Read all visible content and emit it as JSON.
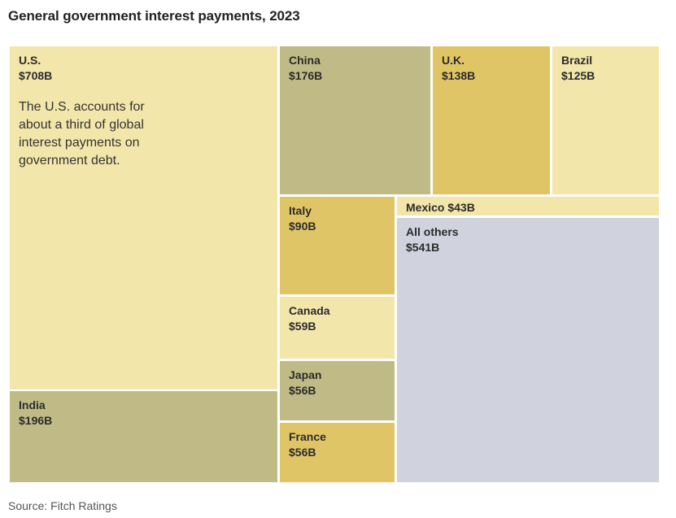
{
  "title": "General government interest payments, 2023",
  "source": "Source: Fitch Ratings",
  "colors": {
    "light_yellow": "#f3e6aa",
    "olive": "#c0bb86",
    "gold": "#e0c566",
    "gray_blue": "#d0d2de"
  },
  "chart_data": {
    "type": "treemap",
    "title": "General government interest payments, 2023",
    "unit": "$B",
    "items": [
      {
        "name": "U.S.",
        "value": 708,
        "label": "$708B",
        "note": "The U.S. accounts for about a third of global interest payments on government debt.",
        "color": "#f3e6aa"
      },
      {
        "name": "India",
        "value": 196,
        "label": "$196B",
        "color": "#c0bb86"
      },
      {
        "name": "China",
        "value": 176,
        "label": "$176B",
        "color": "#c0bb86"
      },
      {
        "name": "U.K.",
        "value": 138,
        "label": "$138B",
        "color": "#e0c566"
      },
      {
        "name": "Brazil",
        "value": 125,
        "label": "$125B",
        "color": "#f3e6aa"
      },
      {
        "name": "Italy",
        "value": 90,
        "label": "$90B",
        "color": "#e0c566"
      },
      {
        "name": "Canada",
        "value": 59,
        "label": "$59B",
        "color": "#f3e6aa"
      },
      {
        "name": "Japan",
        "value": 56,
        "label": "$56B",
        "color": "#c0bb86"
      },
      {
        "name": "France",
        "value": 56,
        "label": "$56B",
        "color": "#e0c566"
      },
      {
        "name": "Mexico",
        "value": 43,
        "label": "$43B",
        "inline_label": "Mexico $43B",
        "color": "#f3e6aa"
      },
      {
        "name": "All others",
        "value": 541,
        "label": "$541B",
        "color": "#d0d2de"
      }
    ]
  }
}
